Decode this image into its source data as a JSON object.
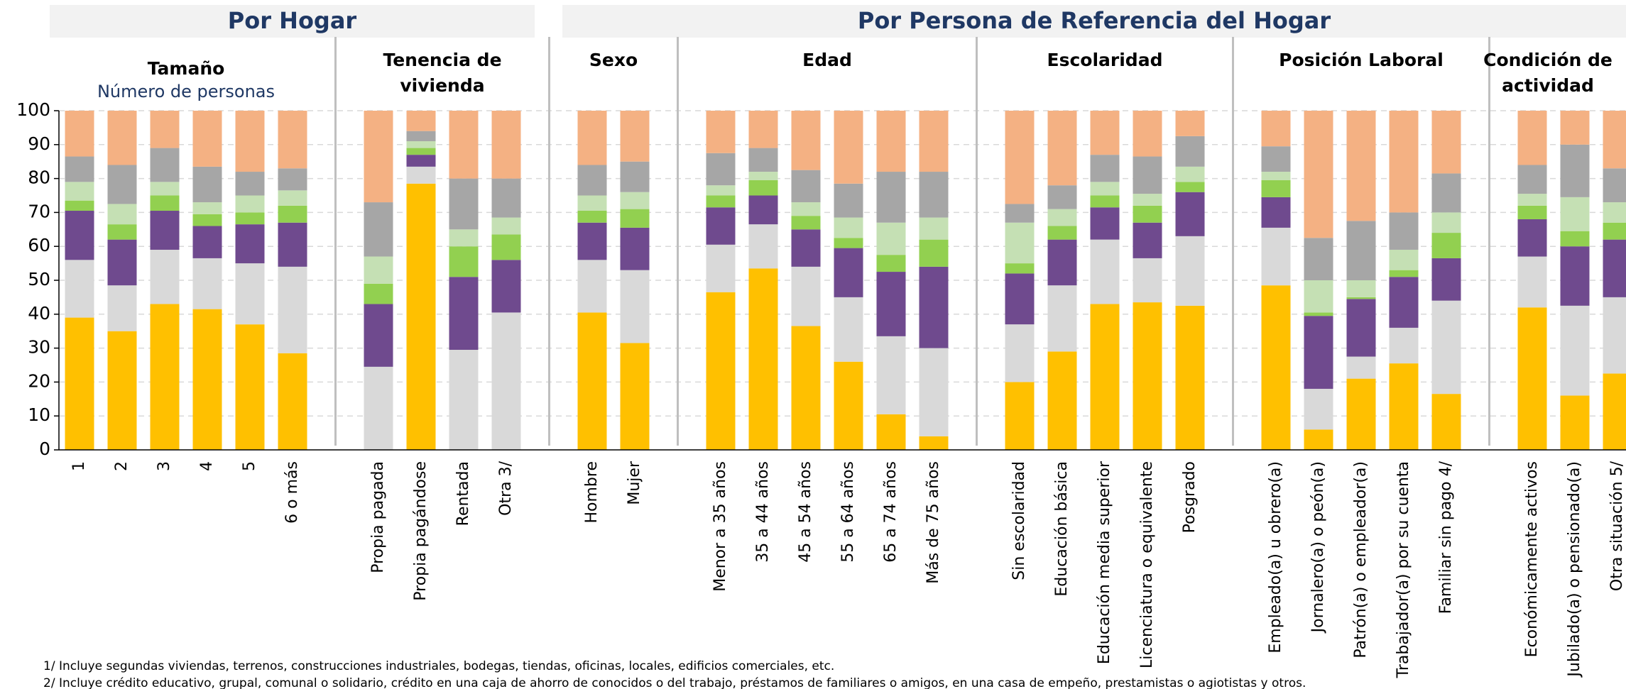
{
  "chart_data": {
    "type": "stacked_bar",
    "ylim": [
      0,
      100
    ],
    "yticks": [
      0,
      10,
      20,
      30,
      40,
      50,
      60,
      70,
      80,
      90,
      100
    ],
    "grid": true,
    "sections": [
      {
        "title": "Por Hogar",
        "groups": [
          {
            "title": [
              "Tamaño"
            ],
            "subtitle": "Número de personas",
            "categories": [
              "1",
              "2",
              "3",
              "4",
              "5",
              "6 o más"
            ]
          },
          {
            "title": [
              "Tenencia de",
              "vivienda"
            ],
            "categories": [
              "Propia pagada",
              "Propia pagándose",
              "Rentada",
              "Otra 3/"
            ]
          }
        ]
      },
      {
        "title": "Por Persona de Referencia del Hogar",
        "groups": [
          {
            "title": [
              "Sexo"
            ],
            "categories": [
              "Hombre",
              "Mujer"
            ]
          },
          {
            "title": [
              "Edad"
            ],
            "categories": [
              "Menor a 35 años",
              "35 a 44 años",
              "45 a 54 años",
              "55 a 64 años",
              "65 a 74 años",
              "Más de 75 años"
            ]
          },
          {
            "title": [
              "Escolaridad"
            ],
            "categories": [
              "Sin escolaridad",
              "Educación básica",
              "Educación media superior",
              "Licenciatura o equivalente",
              "Posgrado"
            ]
          },
          {
            "title": [
              "Posición Laboral"
            ],
            "categories": [
              "Empleado(a) u obrero(a)",
              "Jornalero(a) o peón(a)",
              "Patrón(a) o empleador(a)",
              "Trabajador(a) por su cuenta",
              "Familiar sin pago 4/"
            ]
          },
          {
            "title": [
              "Condición de",
              "actividad"
            ],
            "categories": [
              "Económicamente activos",
              "Jubilado(a) o pensionado(a)",
              "Otra situación 5/"
            ]
          }
        ]
      }
    ],
    "series": [
      {
        "color": "#ffc000",
        "values": [
          39,
          35,
          43,
          41.5,
          37,
          28.5,
          0,
          78.5,
          0,
          0,
          40.5,
          31.5,
          46.5,
          53.5,
          36.5,
          26,
          10.5,
          4,
          20,
          29,
          43,
          43.5,
          42.5,
          48.5,
          6,
          21,
          25.5,
          16.5,
          42,
          16,
          22.5
        ]
      },
      {
        "color": "#d9d9d9",
        "values": [
          17,
          13.5,
          16,
          15,
          18,
          25.5,
          24.5,
          5,
          29.5,
          40.5,
          15.5,
          21.5,
          14,
          13,
          17.5,
          19,
          23,
          26,
          17,
          19.5,
          19,
          13,
          20.5,
          17,
          12,
          6.5,
          10.5,
          27.5,
          15,
          26.5,
          22.5
        ]
      },
      {
        "color": "#6f4a8e",
        "values": [
          14.5,
          13.5,
          11.5,
          9.5,
          11.5,
          13,
          18.5,
          3.5,
          21.5,
          15.5,
          11,
          12.5,
          11,
          8.5,
          11,
          14.5,
          19,
          24,
          15,
          13.5,
          9.5,
          10.5,
          13,
          9,
          21.5,
          17,
          15,
          12.5,
          11,
          17.5,
          17
        ]
      },
      {
        "color": "#92d050",
        "values": [
          3,
          4.5,
          4.5,
          3.5,
          3.5,
          5,
          6,
          2,
          9,
          7.5,
          3.5,
          5.5,
          3.5,
          4.5,
          4,
          3,
          5,
          8,
          3,
          4,
          3.5,
          5,
          3,
          5,
          1,
          0.5,
          2,
          7.5,
          4,
          4.5,
          5
        ]
      },
      {
        "color": "#c5e0b4",
        "values": [
          5.5,
          6,
          4,
          3.5,
          5,
          4.5,
          8,
          2,
          5,
          5,
          4.5,
          5,
          3,
          2.5,
          4,
          6,
          9.5,
          6.5,
          12,
          5,
          4,
          3.5,
          4.5,
          2.5,
          9.5,
          5,
          6,
          6,
          3.5,
          10,
          6
        ]
      },
      {
        "color": "#a6a6a6",
        "values": [
          7.5,
          11.5,
          10,
          10.5,
          7,
          6.5,
          16,
          3,
          15,
          11.5,
          9,
          9,
          9.5,
          7,
          9.5,
          10,
          15,
          13.5,
          5.5,
          7,
          8,
          11,
          9,
          7.5,
          12.5,
          17.5,
          11,
          11.5,
          8.5,
          15.5,
          10
        ]
      },
      {
        "color": "#f4b183",
        "values": [
          13.5,
          16,
          11,
          16.5,
          18,
          17,
          27,
          6,
          20,
          20,
          16,
          15,
          12.5,
          11,
          17.5,
          21.5,
          18,
          18,
          27.5,
          22,
          13,
          13.5,
          7.5,
          10.5,
          37.5,
          32.5,
          30,
          18.5,
          16,
          10,
          17
        ]
      }
    ],
    "footnotes": [
      "1/ Incluye segundas viviendas, terrenos, construcciones industriales, bodegas, tiendas, oficinas, locales, edificios comerciales, etc.",
      "2/ Incluye crédito educativo, grupal, comunal o solidario, crédito en una caja de ahorro de conocidos o del trabajo, préstamos de familiares o amigos, en  una casa de empeño, prestamistas o agiotistas y otros."
    ]
  }
}
